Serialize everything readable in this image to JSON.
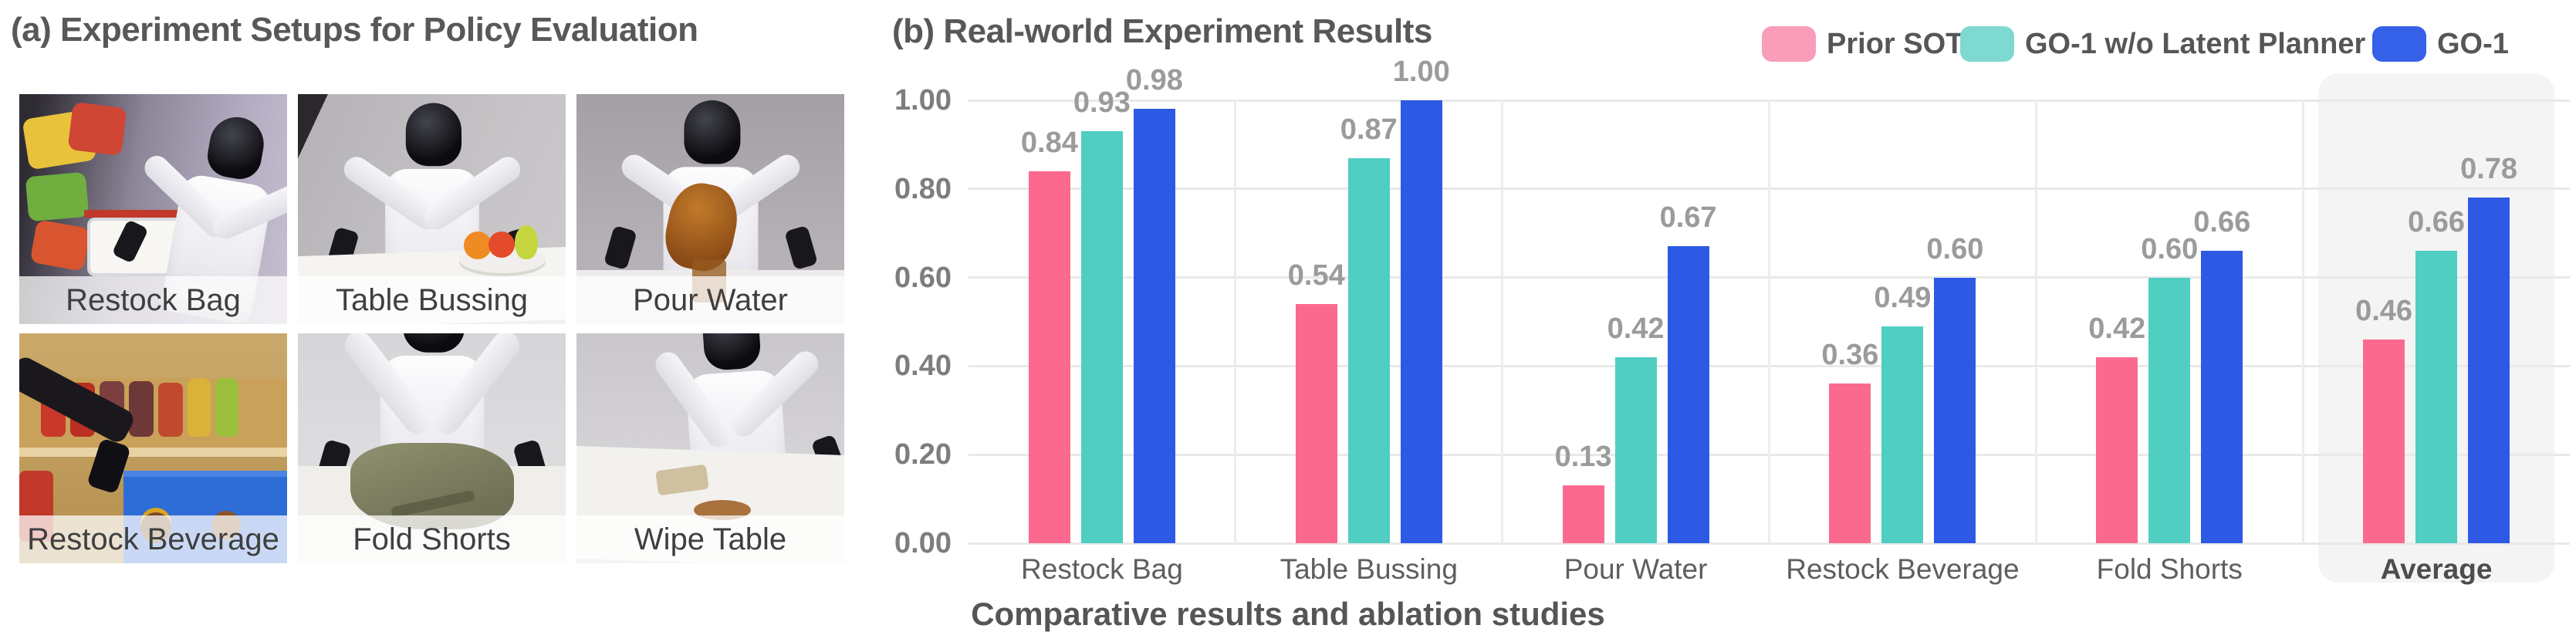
{
  "figure": {
    "caption": "Comparative results and ablation studies"
  },
  "panel_a": {
    "title": "(a) Experiment Setups for Policy Evaluation",
    "photos": [
      {
        "label": "Restock Bag",
        "scene": "robot-restocking-snack-bags-near-shopping-cart"
      },
      {
        "label": "Table Bussing",
        "scene": "robot-at-white-table-with-fruit-bowl"
      },
      {
        "label": "Pour Water",
        "scene": "robot-pouring-brown-liquid-into-cup"
      },
      {
        "label": "Restock Beverage",
        "scene": "robot-arm-moving-cans-from-shelf-to-blue-crate"
      },
      {
        "label": "Fold Shorts",
        "scene": "robot-folding-olive-shorts-on-table"
      },
      {
        "label": "Wipe Table",
        "scene": "robot-wiping-spill-on-table-with-sponge"
      }
    ]
  },
  "panel_b": {
    "title": "(b) Real-world Experiment Results",
    "chart_data": {
      "type": "bar",
      "title": "(b) Real-world Experiment Results",
      "categories": [
        "Restock Bag",
        "Table Bussing",
        "Pour Water",
        "Restock Beverage",
        "Fold Shorts",
        "Average"
      ],
      "series": [
        {
          "name": "Prior SOTA",
          "color": "#FB6A8E",
          "legend_color": "#F99DB9",
          "values": [
            0.84,
            0.54,
            0.13,
            0.36,
            0.42,
            0.46
          ]
        },
        {
          "name": "GO-1 w/o Latent Planner",
          "color": "#50CEC2",
          "legend_color": "#7EDAD1",
          "values": [
            0.93,
            0.87,
            0.42,
            0.49,
            0.6,
            0.66
          ]
        },
        {
          "name": "GO-1",
          "color": "#2E59E4",
          "legend_color": "#3560E8",
          "values": [
            0.98,
            1.0,
            0.67,
            0.6,
            0.66,
            0.78
          ]
        }
      ],
      "xlabel": "",
      "ylabel": "",
      "ylim": [
        0,
        1
      ],
      "yticks": [
        0,
        0.2,
        0.4,
        0.6,
        0.8,
        1.0
      ],
      "grid": "horizontal",
      "legend_position": "top-right",
      "value_labels": true,
      "highlight_category": "Average"
    }
  }
}
